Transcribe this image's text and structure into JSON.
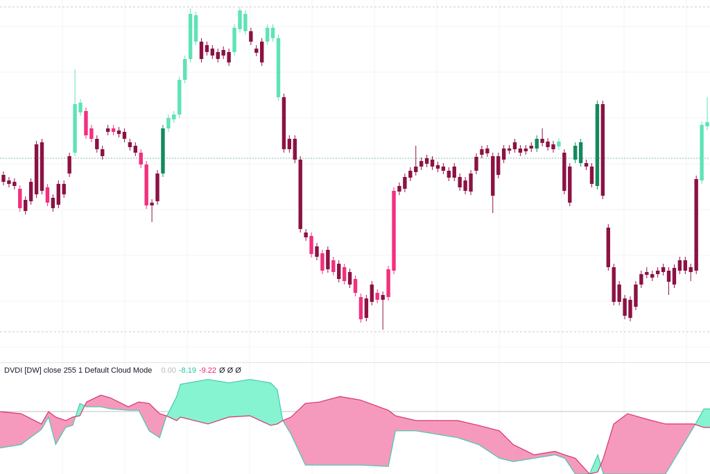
{
  "chart_data": [
    {
      "type": "candlestick",
      "xlim": [
        -0.63,
        128.5
      ],
      "ylim": [
        0,
        520
      ],
      "open": [
        268,
        260,
        258,
        248,
        232,
        258,
        312,
        315,
        250,
        235,
        255,
        255,
        295,
        300,
        358,
        360,
        335,
        320,
        305,
        335,
        335,
        332,
        330,
        315,
        310,
        300,
        283,
        228,
        270,
        270,
        335,
        348,
        355,
        405,
        435,
        460,
        460,
        455,
        450,
        445,
        448,
        445,
        445,
        478,
        475,
        475,
        450,
        460,
        460,
        465,
        380,
        380,
        320,
        320,
        290,
        185,
        180,
        165,
        155,
        160,
        145,
        140,
        135,
        128,
        118,
        92,
        90,
        110,
        98,
        95,
        132,
        245,
        252,
        265,
        274,
        280,
        288,
        292,
        290,
        282,
        280,
        274,
        280,
        265,
        260,
        270,
        294,
        305,
        306,
        295,
        295,
        306,
        306,
        315,
        306,
        306,
        310,
        306,
        320,
        316,
        312,
        309,
        300,
        280,
        290,
        285,
        285,
        280,
        252,
        370,
        192,
        135,
        110,
        90,
        88,
        110,
        125,
        128,
        125,
        130,
        135,
        130,
        134,
        145,
        145,
        135,
        262,
        260,
        338
      ],
      "high": [
        273,
        265,
        263,
        253,
        237,
        263,
        317,
        320,
        255,
        240,
        260,
        260,
        300,
        420,
        377,
        365,
        340,
        325,
        310,
        340,
        340,
        337,
        335,
        320,
        315,
        305,
        288,
        233,
        275,
        340,
        355,
        360,
        410,
        440,
        508,
        503,
        465,
        460,
        455,
        450,
        453,
        450,
        485,
        510,
        505,
        480,
        455,
        465,
        485,
        485,
        470,
        385,
        325,
        325,
        295,
        190,
        185,
        170,
        160,
        165,
        150,
        145,
        140,
        133,
        123,
        97,
        95,
        115,
        103,
        100,
        137,
        250,
        257,
        270,
        279,
        310,
        293,
        297,
        295,
        287,
        285,
        279,
        285,
        270,
        265,
        275,
        299,
        310,
        311,
        300,
        300,
        311,
        311,
        320,
        311,
        311,
        315,
        325,
        335,
        321,
        317,
        321,
        305,
        285,
        315,
        320,
        290,
        285,
        375,
        375,
        197,
        140,
        115,
        95,
        93,
        115,
        130,
        135,
        130,
        135,
        140,
        135,
        139,
        150,
        150,
        140,
        267,
        345,
        380
      ],
      "low": [
        253,
        250,
        247,
        215,
        211,
        225,
        235,
        240,
        223,
        215,
        220,
        235,
        265,
        295,
        353,
        320,
        315,
        300,
        290,
        325,
        325,
        322,
        315,
        303,
        295,
        278,
        219,
        200,
        225,
        265,
        330,
        343,
        350,
        400,
        430,
        455,
        430,
        440,
        435,
        430,
        435,
        425,
        440,
        473,
        470,
        455,
        439,
        425,
        455,
        460,
        375,
        300,
        300,
        285,
        185,
        173,
        149,
        145,
        125,
        127,
        123,
        113,
        110,
        105,
        93,
        55,
        57,
        80,
        83,
        45,
        87,
        125,
        239,
        243,
        259,
        267,
        275,
        279,
        275,
        272,
        269,
        259,
        259,
        245,
        240,
        239,
        269,
        292,
        294,
        213,
        263,
        285,
        298,
        300,
        295,
        297,
        301,
        301,
        309,
        303,
        300,
        304,
        240,
        223,
        285,
        280,
        275,
        250,
        247,
        233,
        130,
        80,
        80,
        60,
        57,
        73,
        105,
        119,
        115,
        120,
        123,
        95,
        105,
        125,
        125,
        115,
        125,
        255,
        333
      ],
      "close": [
        258,
        255,
        252,
        220,
        216,
        230,
        240,
        245,
        228,
        220,
        225,
        240,
        270,
        370,
        372,
        325,
        320,
        305,
        295,
        330,
        330,
        327,
        320,
        308,
        300,
        283,
        224,
        224,
        230,
        335,
        350,
        355,
        405,
        435,
        500,
        498,
        435,
        445,
        440,
        435,
        440,
        430,
        480,
        505,
        500,
        460,
        444,
        430,
        480,
        480,
        465,
        305,
        305,
        290,
        190,
        178,
        154,
        150,
        130,
        132,
        128,
        118,
        115,
        110,
        98,
        60,
        62,
        85,
        88,
        88,
        92,
        130,
        244,
        248,
        264,
        272,
        280,
        284,
        280,
        277,
        274,
        264,
        264,
        250,
        245,
        244,
        274,
        297,
        299,
        238,
        268,
        290,
        303,
        305,
        300,
        302,
        306,
        320,
        314,
        308,
        305,
        316,
        245,
        228,
        310,
        315,
        280,
        255,
        370,
        238,
        135,
        85,
        85,
        65,
        62,
        78,
        110,
        124,
        120,
        125,
        128,
        114,
        110,
        130,
        130,
        128,
        130,
        340,
        344
      ],
      "colors": [
        "#8c1244",
        "#8c1244",
        "#8c1244",
        "#f2307e",
        "#8c1244",
        "#8c1244",
        "#8c1244",
        "#8c1244",
        "#f2307e",
        "#8c1244",
        "#8c1244",
        "#8c1244",
        "#8c1244",
        "#5fe3b6",
        "#5fe3b6",
        "#f2307e",
        "#f2307e",
        "#8c1244",
        "#8c1244",
        "#8c1244",
        "#f2307e",
        "#8c1244",
        "#8c1244",
        "#8c1244",
        "#8c1244",
        "#f2307e",
        "#f2307e",
        "#8c1244",
        "#8c1244",
        "#138a5e",
        "#5fe3b6",
        "#5fe3b6",
        "#5fe3b6",
        "#5fe3b6",
        "#5fe3b6",
        "#5fe3b6",
        "#8c1244",
        "#8c1244",
        "#8c1244",
        "#8c1244",
        "#8c1244",
        "#8c1244",
        "#5fe3b6",
        "#5fe3b6",
        "#5fe3b6",
        "#8c1244",
        "#8c1244",
        "#8c1244",
        "#5fe3b6",
        "#5fe3b6",
        "#5fe3b6",
        "#8c1244",
        "#8c1244",
        "#8c1244",
        "#8c1244",
        "#8c1244",
        "#f2307e",
        "#8c1244",
        "#f2307e",
        "#8c1244",
        "#f2307e",
        "#8c1244",
        "#f2307e",
        "#8c1244",
        "#f2307e",
        "#f2307e",
        "#8c1244",
        "#8c1244",
        "#f2307e",
        "#8c1244",
        "#f2307e",
        "#f2307e",
        "#8c1244",
        "#8c1244",
        "#8c1244",
        "#8c1244",
        "#8c1244",
        "#8c1244",
        "#8c1244",
        "#8c1244",
        "#8c1244",
        "#8c1244",
        "#8c1244",
        "#8c1244",
        "#8c1244",
        "#8c1244",
        "#8c1244",
        "#8c1244",
        "#8c1244",
        "#8c1244",
        "#8c1244",
        "#8c1244",
        "#8c1244",
        "#8c1244",
        "#8c1244",
        "#8c1244",
        "#8c1244",
        "#138a5e",
        "#8c1244",
        "#8c1244",
        "#8c1244",
        "#5fe3b6",
        "#8c1244",
        "#8c1244",
        "#138a5e",
        "#138a5e",
        "#8c1244",
        "#8c1244",
        "#138a5e",
        "#8c1244",
        "#8c1244",
        "#8c1244",
        "#8c1244",
        "#8c1244",
        "#8c1244",
        "#8c1244",
        "#8c1244",
        "#8c1244",
        "#8c1244",
        "#8c1244",
        "#8c1244",
        "#8c1244",
        "#8c1244",
        "#8c1244",
        "#8c1244",
        "#8c1244",
        "#8c1244",
        "#5fe3b6",
        "#5fe3b6"
      ]
    },
    {
      "type": "cloud",
      "title": "DVDI [DW] close 255 1 Default Cloud Mode",
      "legend_values": [
        {
          "value": 0,
          "label": "0.00",
          "color": "#b8b8b8"
        },
        {
          "value": -8.19,
          "label": "-8.19",
          "color": "#22c7a0"
        },
        {
          "value": -9.22,
          "label": "-9.22",
          "color": "#e8246f"
        }
      ],
      "legend_suffix": "Ø Ø Ø",
      "xlim": [
        -0.63,
        128.5
      ],
      "ylim": [
        -18,
        14
      ],
      "x": [
        -0.6,
        3.2,
        6.9,
        8.2,
        9.5,
        11.3,
        12.6,
        13.9,
        15.1,
        17.7,
        19.5,
        22.7,
        24.6,
        26.5,
        28.4,
        29.6,
        31.5,
        32.2,
        37.2,
        41,
        44.8,
        48.6,
        49.8,
        50.8,
        52.3,
        54.9,
        57.4,
        61.2,
        64.9,
        70,
        71.3,
        75,
        78.8,
        82.6,
        86.4,
        90.2,
        92.7,
        96.5,
        100.3,
        102.1,
        104,
        106.6,
        108.1,
        109.1,
        111,
        113.5,
        117.9,
        120.4,
        125.5,
        127.4,
        128.5
      ],
      "series": [
        {
          "color": "#45c9b0",
          "values": [
            -10.4,
            -9.4,
            -5,
            -1.4,
            -9.4,
            -4.4,
            -3.8,
            2.6,
            1.6,
            1.6,
            1,
            0.6,
            0.6,
            -5.4,
            -7.4,
            -1.4,
            4.6,
            8.2,
            9.6,
            8.6,
            9.6,
            8.6,
            6.6,
            -2.4,
            -6.4,
            -15.4,
            -15.4,
            -15.4,
            -15.4,
            -15.8,
            -5.4,
            -5.4,
            -6.4,
            -7.4,
            -9.4,
            -13.4,
            -14.4,
            -13.4,
            -12.4,
            -13.4,
            -18,
            -18,
            -12.4,
            -18,
            -18,
            -18,
            -18,
            -18,
            -4.4,
            1,
            1
          ]
        },
        {
          "color": "#d7326f",
          "values": [
            0.2,
            -0.4,
            -3.4,
            0.2,
            -1.4,
            -2.4,
            -1.4,
            -1,
            3,
            5,
            4.2,
            1.6,
            3,
            2.6,
            -0.4,
            -1,
            -2.4,
            -1.4,
            -3.4,
            -1.4,
            -1,
            -3.8,
            -3.4,
            -2.4,
            -1.4,
            2.6,
            3,
            4.6,
            3.6,
            0.6,
            -1,
            -2.4,
            -2.4,
            -2.4,
            -3.8,
            -5.4,
            -9.4,
            -12.4,
            -11.4,
            -12.4,
            -13.4,
            -18,
            -17.4,
            -13.4,
            -3.4,
            -0.4,
            -2.4,
            -3.4,
            -3.4,
            -4.4,
            -4.4
          ]
        }
      ],
      "up_fill": "#86f3d1",
      "down_fill": "#f59abd"
    }
  ]
}
